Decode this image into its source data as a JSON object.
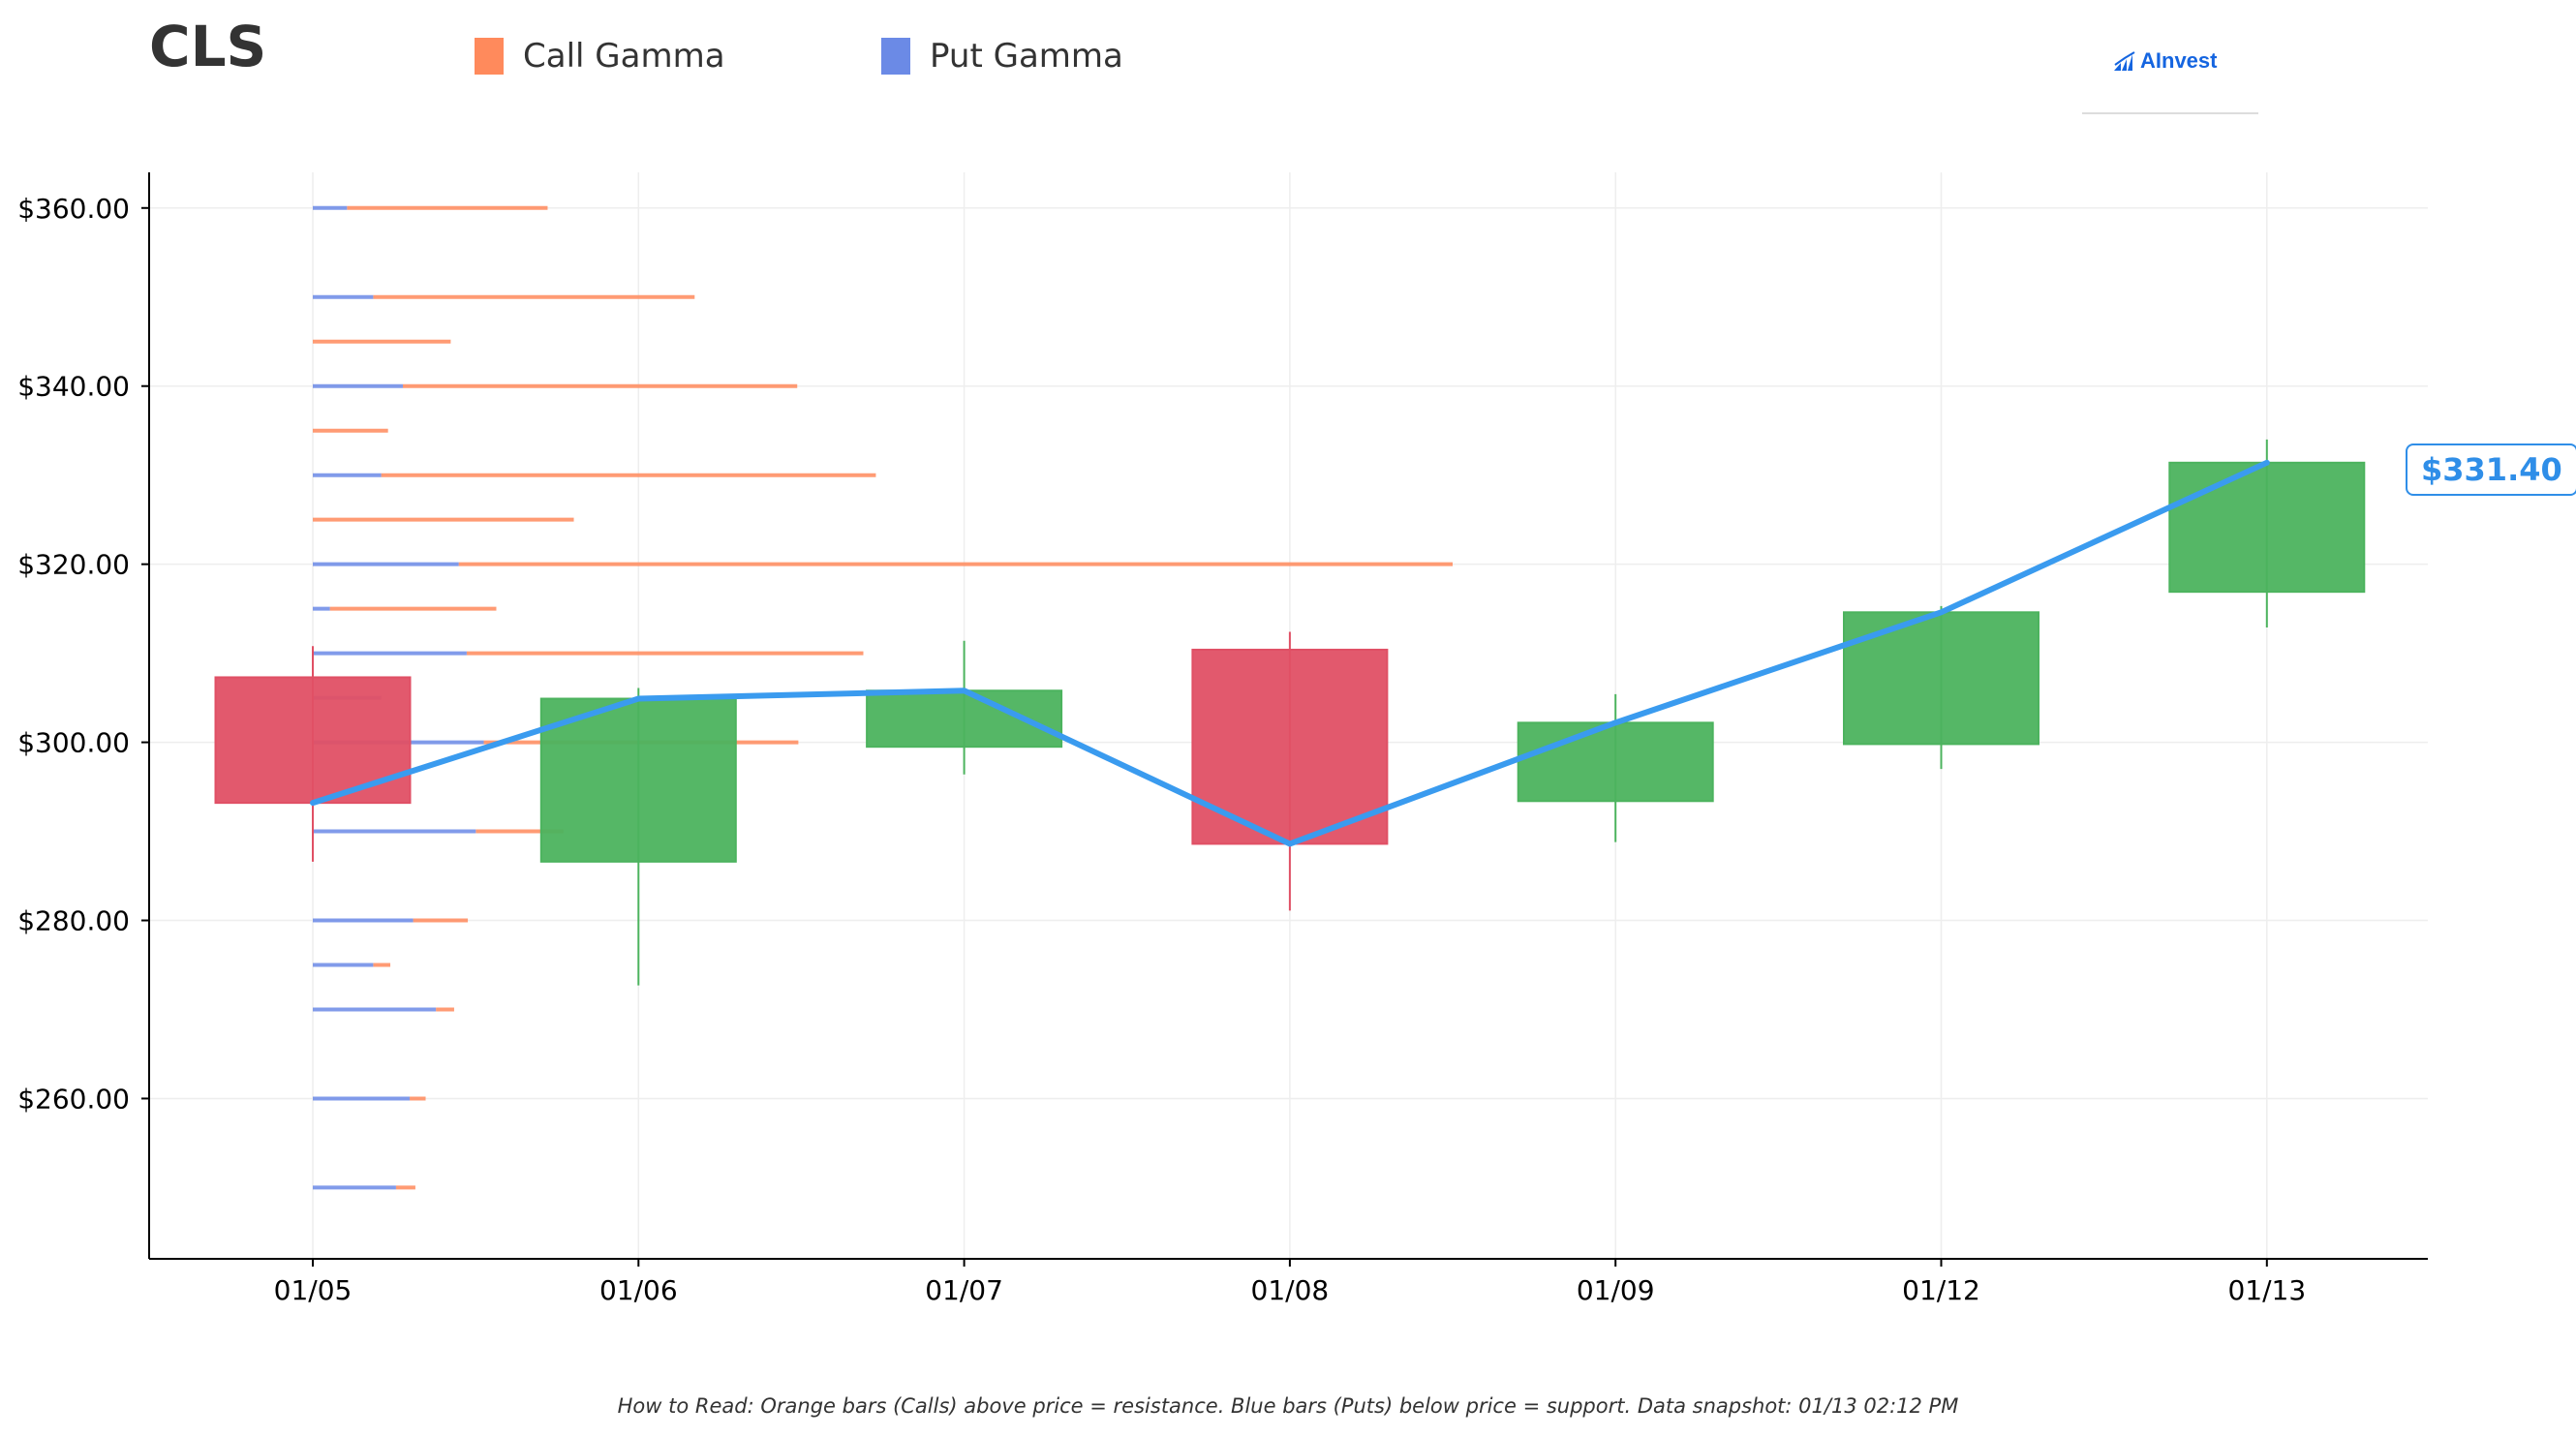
{
  "header": {
    "ticker": "CLS",
    "legend_call": "Call Gamma",
    "legend_put": "Put Gamma",
    "brand": "AInvest"
  },
  "colors": {
    "call": "#ff8a5c",
    "put": "#6b8ae6",
    "up": "#4cb35e",
    "down": "#e05065",
    "price_line": "#3a9bef",
    "axis": "#000000",
    "grid": "#eeeeee"
  },
  "footer": {
    "note": "How to Read: Orange bars (Calls) above price = resistance. Blue bars (Puts) below price = support. Data snapshot: 01/13 02:12 PM"
  },
  "chart_data": {
    "type": "candlestick",
    "ticker": "CLS",
    "categories": [
      "01/05",
      "01/06",
      "01/07",
      "01/08",
      "01/09",
      "01/12",
      "01/13"
    ],
    "ylim": [
      242,
      364
    ],
    "yticks": [
      260,
      280,
      300,
      320,
      340,
      360
    ],
    "ytick_labels": [
      "$260.00",
      "$280.00",
      "$300.00",
      "$320.00",
      "$340.00",
      "$360.00"
    ],
    "grid": true,
    "candles": [
      {
        "date": "01/05",
        "open": 307.3,
        "high": 310.8,
        "low": 286.6,
        "close": 293.2
      },
      {
        "date": "01/06",
        "open": 286.6,
        "high": 306.1,
        "low": 272.7,
        "close": 304.9
      },
      {
        "date": "01/07",
        "open": 299.5,
        "high": 311.4,
        "low": 296.4,
        "close": 305.8
      },
      {
        "date": "01/08",
        "open": 310.4,
        "high": 312.4,
        "low": 281.1,
        "close": 288.6
      },
      {
        "date": "01/09",
        "open": 293.4,
        "high": 305.4,
        "low": 288.8,
        "close": 302.2
      },
      {
        "date": "01/12",
        "open": 299.8,
        "high": 315.3,
        "low": 297.0,
        "close": 314.6
      },
      {
        "date": "01/13",
        "open": 316.9,
        "high": 334.0,
        "low": 312.9,
        "close": 331.4
      }
    ],
    "price_line": {
      "name": "",
      "values": [
        293.2,
        304.9,
        305.8,
        288.6,
        302.2,
        314.6,
        331.4
      ]
    },
    "last_price_label": "$331.40",
    "gamma_profile": {
      "units": "relative length (1.0 = longest bar)",
      "strikes": [
        360,
        350,
        345,
        340,
        335,
        330,
        325,
        320,
        315,
        310,
        305,
        300,
        290,
        280,
        275,
        270,
        260,
        250
      ],
      "put": [
        0.03,
        0.053,
        0.0,
        0.079,
        0.0,
        0.06,
        0.0,
        0.128,
        0.015,
        0.135,
        0.06,
        0.15,
        0.143,
        0.088,
        0.053,
        0.108,
        0.085,
        0.073
      ],
      "call": [
        0.206,
        0.335,
        0.121,
        0.425,
        0.066,
        0.494,
        0.229,
        1.0,
        0.161,
        0.483,
        0.06,
        0.426,
        0.22,
        0.136,
        0.068,
        0.124,
        0.099,
        0.09
      ]
    }
  }
}
